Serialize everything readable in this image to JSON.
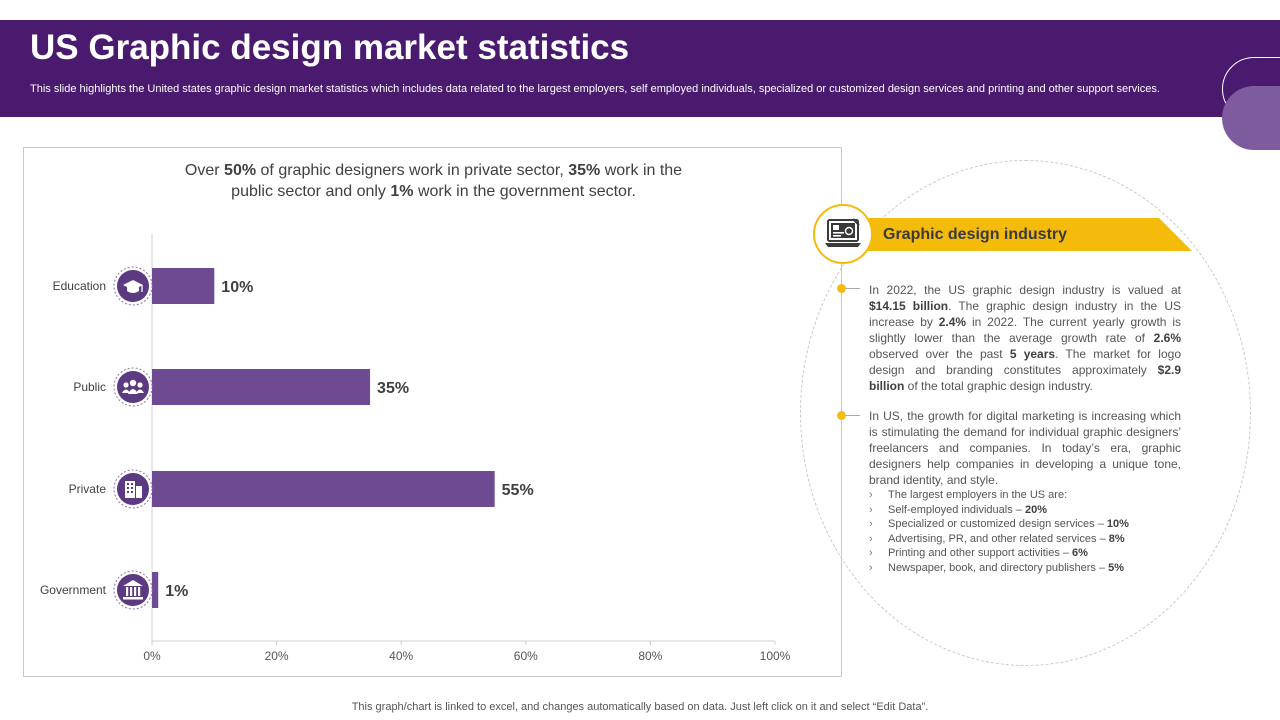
{
  "header": {
    "title": "US Graphic design market statistics",
    "subtitle": "This slide highlights the United states graphic design market statistics which includes data related to the largest employers, self employed individuals, specialized or customized design services and printing and other support services."
  },
  "colors": {
    "header_bg": "#4a1a6e",
    "bar": "#6e4a92",
    "accent": "#f5bb0b",
    "icon_circle": "#5b3a82"
  },
  "chart_headline": {
    "t1": "Over ",
    "b1": "50%",
    "t2": " of graphic designers work in private sector, ",
    "b2": "35%",
    "t3": " work in the",
    "t4": "public sector and only ",
    "b3": "1%",
    "t5": " work in the government sector."
  },
  "chart_data": {
    "type": "bar",
    "orientation": "horizontal",
    "title": "Over 50% of graphic designers work in private sector, 35% work in the public sector and only 1% work in the government sector.",
    "categories": [
      "Education",
      "Public",
      "Private",
      "Government"
    ],
    "values": [
      10,
      35,
      55,
      1
    ],
    "value_labels": [
      "10%",
      "35%",
      "55%",
      "1%"
    ],
    "icons": [
      "graduation-cap-icon",
      "people-group-icon",
      "office-building-icon",
      "government-building-icon"
    ],
    "x_ticks": [
      "0%",
      "20%",
      "40%",
      "60%",
      "80%",
      "100%"
    ],
    "xlim": [
      0,
      100
    ],
    "xlabel": "",
    "ylabel": "",
    "grid": false,
    "legend": "none"
  },
  "industry": {
    "title": "Graphic design industry",
    "icon": "laptop-design-icon",
    "p1": {
      "a": "In 2022, the US graphic design industry is valued at ",
      "b": "$14.15 billion",
      "c": ". The graphic design industry in the US increase by ",
      "d": "2.4%",
      "e": " in 2022. The current yearly growth is slightly lower than the average growth rate of ",
      "f": "2.6%",
      "g": " observed over the past ",
      "h": "5 years",
      "i": ". The market for logo design and branding constitutes approximately ",
      "j": "$2.9 billion",
      "k": " of the total graphic design industry."
    },
    "p2": "In US, the growth for digital marketing is increasing which is stimulating the demand for individual graphic designers’ freelancers and companies. In today’s era, graphic designers help companies in developing a unique tone, brand identity, and style.",
    "list": [
      {
        "text": "The largest employers in the US are:",
        "value": ""
      },
      {
        "text": "Self-employed individuals – ",
        "value": "20%"
      },
      {
        "text": "Specialized or customized design services – ",
        "value": "10%"
      },
      {
        "text": "Advertising, PR, and other related services – ",
        "value": "8%"
      },
      {
        "text": "Printing and other support activities – ",
        "value": "6%"
      },
      {
        "text": "Newspaper, book, and directory publishers – ",
        "value": "5%"
      }
    ]
  },
  "footer": "This graph/chart is linked to excel, and changes automatically based on data. Just left click on it and select “Edit Data”."
}
